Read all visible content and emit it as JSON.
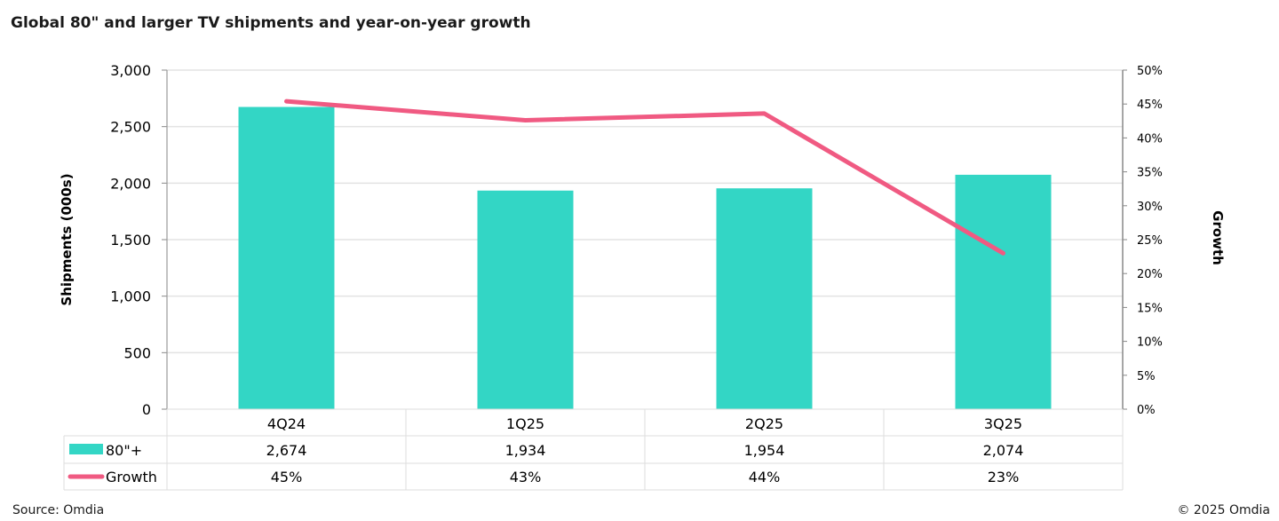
{
  "title": "Global 80\" and larger TV shipments and year-on-year growth",
  "source": "Source: Omdia",
  "copyright": "© 2025 Omdia",
  "chart_data": {
    "type": "bar+line",
    "title": "Global 80\" and larger TV shipments and year-on-year growth",
    "categories": [
      "4Q24",
      "1Q25",
      "2Q25",
      "3Q25"
    ],
    "ylabel": "Shipments (000s)",
    "y2label": "Growth",
    "ylim": [
      0,
      3000
    ],
    "y2lim": [
      0,
      50
    ],
    "yticks": [
      "0",
      "500",
      "1,000",
      "1,500",
      "2,000",
      "2,500",
      "3,000"
    ],
    "y2ticks": [
      "0%",
      "5%",
      "10%",
      "15%",
      "20%",
      "25%",
      "30%",
      "35%",
      "40%",
      "45%",
      "50%"
    ],
    "grid": true,
    "legend": "data-table",
    "series": [
      {
        "name": "80\"+",
        "type": "bar",
        "axis": "left",
        "color": "#33D6C5",
        "values": [
          2674,
          1934,
          1954,
          2074
        ],
        "labels": [
          "2,674",
          "1,934",
          "1,954",
          "2,074"
        ]
      },
      {
        "name": "Growth",
        "type": "line",
        "axis": "right",
        "color": "#F05A82",
        "values": [
          45.4,
          42.6,
          43.6,
          23.0
        ],
        "labels": [
          "45%",
          "43%",
          "44%",
          "23%"
        ]
      }
    ]
  }
}
